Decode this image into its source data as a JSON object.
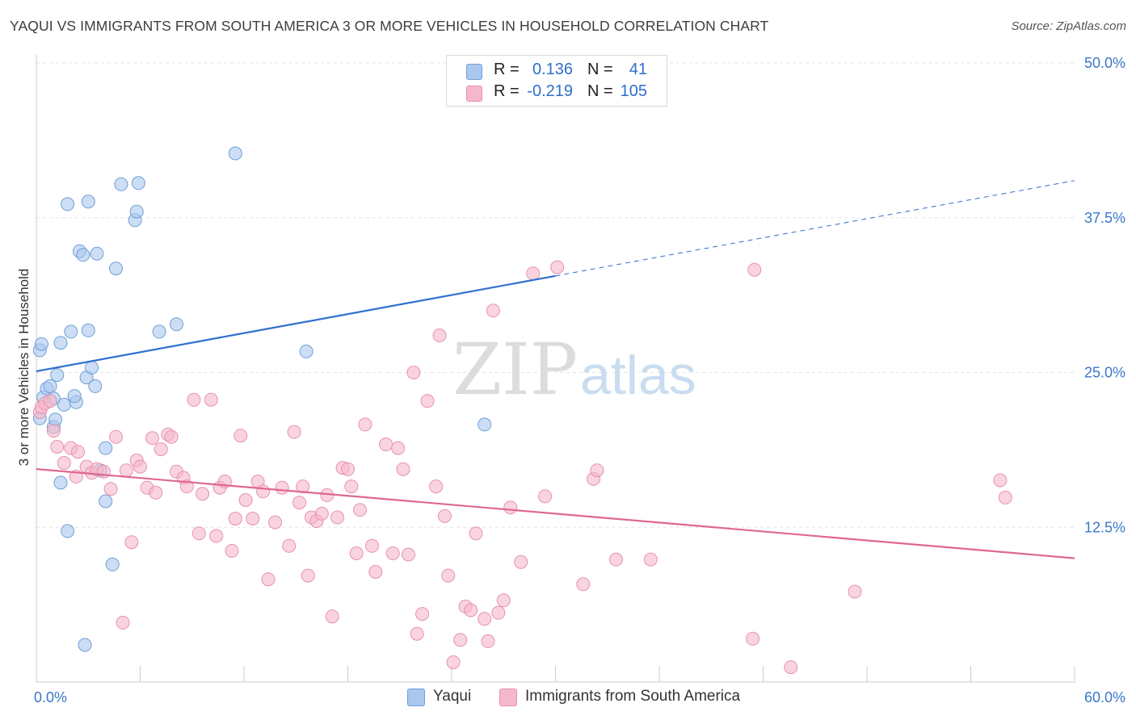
{
  "title": "YAQUI VS IMMIGRANTS FROM SOUTH AMERICA 3 OR MORE VEHICLES IN HOUSEHOLD CORRELATION CHART",
  "source": "Source: ZipAtlas.com",
  "watermark": {
    "zip": "ZIP",
    "atlas": "atlas"
  },
  "legend_top": {
    "rows": [
      {
        "r_label": "R =",
        "r_value": "0.136",
        "n_label": "N =",
        "n_value": "41",
        "color": "#aac8ef",
        "border": "#6f9fd8"
      },
      {
        "r_label": "R =",
        "r_value": "-0.219",
        "n_label": "N =",
        "n_value": "105",
        "color": "#f5b8cb",
        "border": "#e891ad"
      }
    ]
  },
  "legend_bottom": [
    {
      "label": "Yaqui",
      "color": "#aac8ef",
      "border": "#6f9fd8"
    },
    {
      "label": "Immigrants from South America",
      "color": "#f5b8cb",
      "border": "#e891ad"
    }
  ],
  "chart_data": {
    "type": "scatter",
    "xlabel": "",
    "ylabel": "3 or more Vehicles in Household",
    "xlim": [
      0,
      60
    ],
    "ylim": [
      0,
      50
    ],
    "x_tick_labels": [
      {
        "value": 0,
        "label": "0.0%"
      },
      {
        "value": 60,
        "label": "60.0%"
      }
    ],
    "y_tick_labels": [
      {
        "value": 12.5,
        "label": "12.5%"
      },
      {
        "value": 25,
        "label": "25.0%"
      },
      {
        "value": 37.5,
        "label": "37.5%"
      },
      {
        "value": 50,
        "label": "50.0%"
      }
    ],
    "grid": "horizontal dashed",
    "legend_placement": "top-center and bottom",
    "colors": {
      "yaqui": "#2f6fd0",
      "immigrants": "#e0678f"
    },
    "series": [
      {
        "name": "Yaqui",
        "color": "#aac8ef",
        "points": [
          [
            0.2,
            21.3
          ],
          [
            0.2,
            26.8
          ],
          [
            0.3,
            27.3
          ],
          [
            0.4,
            23.0
          ],
          [
            0.6,
            23.7
          ],
          [
            0.8,
            23.9
          ],
          [
            1.0,
            22.9
          ],
          [
            1.0,
            20.6
          ],
          [
            1.1,
            21.2
          ],
          [
            1.2,
            24.8
          ],
          [
            1.4,
            27.4
          ],
          [
            1.4,
            16.1
          ],
          [
            1.6,
            22.4
          ],
          [
            1.8,
            12.2
          ],
          [
            1.8,
            38.6
          ],
          [
            2.0,
            28.3
          ],
          [
            2.3,
            22.6
          ],
          [
            2.2,
            23.1
          ],
          [
            2.5,
            34.8
          ],
          [
            2.7,
            34.5
          ],
          [
            2.8,
            3.0
          ],
          [
            2.9,
            24.6
          ],
          [
            3.0,
            28.4
          ],
          [
            3.0,
            38.8
          ],
          [
            3.2,
            25.4
          ],
          [
            3.4,
            23.9
          ],
          [
            3.5,
            34.6
          ],
          [
            3.7,
            17.1
          ],
          [
            4.0,
            18.9
          ],
          [
            4.0,
            14.6
          ],
          [
            4.4,
            9.5
          ],
          [
            4.6,
            33.4
          ],
          [
            4.9,
            40.2
          ],
          [
            5.7,
            37.3
          ],
          [
            5.8,
            38.0
          ],
          [
            5.9,
            40.3
          ],
          [
            7.1,
            28.3
          ],
          [
            8.1,
            28.9
          ],
          [
            11.5,
            42.7
          ],
          [
            15.6,
            26.7
          ],
          [
            25.9,
            20.8
          ]
        ]
      },
      {
        "name": "Immigrants from South America",
        "color": "#f5b8cb",
        "points": [
          [
            0.2,
            21.8
          ],
          [
            0.3,
            22.2
          ],
          [
            0.5,
            22.5
          ],
          [
            0.8,
            22.7
          ],
          [
            1.0,
            20.3
          ],
          [
            1.2,
            19.0
          ],
          [
            1.6,
            17.7
          ],
          [
            2.0,
            18.9
          ],
          [
            2.3,
            16.6
          ],
          [
            2.4,
            18.6
          ],
          [
            2.9,
            17.4
          ],
          [
            3.2,
            16.9
          ],
          [
            3.5,
            17.2
          ],
          [
            3.9,
            17.0
          ],
          [
            4.3,
            15.6
          ],
          [
            4.6,
            19.8
          ],
          [
            5.0,
            4.8
          ],
          [
            5.2,
            17.1
          ],
          [
            5.5,
            11.3
          ],
          [
            5.8,
            17.9
          ],
          [
            6.0,
            17.4
          ],
          [
            6.4,
            15.7
          ],
          [
            6.7,
            19.7
          ],
          [
            6.9,
            15.3
          ],
          [
            7.2,
            18.8
          ],
          [
            7.6,
            20.0
          ],
          [
            7.8,
            19.8
          ],
          [
            8.1,
            17.0
          ],
          [
            8.5,
            16.5
          ],
          [
            8.7,
            15.8
          ],
          [
            9.1,
            22.8
          ],
          [
            9.4,
            12.0
          ],
          [
            9.6,
            15.2
          ],
          [
            10.1,
            22.8
          ],
          [
            10.4,
            11.8
          ],
          [
            10.6,
            15.7
          ],
          [
            10.9,
            16.2
          ],
          [
            11.3,
            10.6
          ],
          [
            11.5,
            13.2
          ],
          [
            11.8,
            19.9
          ],
          [
            12.1,
            14.7
          ],
          [
            12.5,
            13.2
          ],
          [
            12.8,
            16.2
          ],
          [
            13.1,
            15.4
          ],
          [
            13.4,
            8.3
          ],
          [
            13.8,
            12.9
          ],
          [
            14.2,
            15.7
          ],
          [
            14.6,
            11.0
          ],
          [
            14.9,
            20.2
          ],
          [
            15.2,
            14.5
          ],
          [
            15.4,
            15.8
          ],
          [
            15.7,
            8.6
          ],
          [
            15.9,
            13.3
          ],
          [
            16.2,
            13.0
          ],
          [
            16.5,
            13.6
          ],
          [
            16.8,
            15.1
          ],
          [
            17.1,
            5.3
          ],
          [
            17.4,
            13.3
          ],
          [
            17.7,
            17.3
          ],
          [
            18.0,
            17.2
          ],
          [
            18.2,
            15.8
          ],
          [
            18.5,
            10.4
          ],
          [
            18.7,
            13.9
          ],
          [
            19.0,
            20.8
          ],
          [
            19.4,
            11.0
          ],
          [
            19.6,
            8.9
          ],
          [
            20.2,
            19.2
          ],
          [
            20.6,
            10.4
          ],
          [
            20.9,
            18.9
          ],
          [
            21.2,
            17.2
          ],
          [
            21.5,
            10.3
          ],
          [
            21.8,
            25.0
          ],
          [
            22.0,
            3.9
          ],
          [
            22.3,
            5.5
          ],
          [
            22.6,
            22.7
          ],
          [
            23.1,
            15.8
          ],
          [
            23.3,
            28.0
          ],
          [
            23.6,
            13.4
          ],
          [
            23.8,
            8.6
          ],
          [
            24.1,
            1.6
          ],
          [
            24.5,
            3.4
          ],
          [
            24.8,
            6.1
          ],
          [
            25.1,
            5.8
          ],
          [
            25.4,
            12.0
          ],
          [
            25.9,
            5.1
          ],
          [
            26.1,
            3.3
          ],
          [
            26.4,
            30.0
          ],
          [
            26.7,
            5.6
          ],
          [
            27.0,
            6.6
          ],
          [
            27.4,
            14.1
          ],
          [
            28.0,
            9.7
          ],
          [
            28.7,
            33.0
          ],
          [
            29.4,
            15.0
          ],
          [
            30.1,
            33.5
          ],
          [
            31.6,
            7.9
          ],
          [
            32.2,
            16.4
          ],
          [
            32.4,
            17.1
          ],
          [
            33.5,
            9.9
          ],
          [
            35.5,
            9.9
          ],
          [
            41.5,
            33.3
          ],
          [
            41.4,
            3.5
          ],
          [
            43.6,
            1.2
          ],
          [
            47.3,
            7.3
          ],
          [
            55.7,
            16.3
          ],
          [
            56.0,
            14.9
          ]
        ]
      }
    ],
    "trend_lines": [
      {
        "name": "Yaqui",
        "x_start": 0,
        "y_start": 25.1,
        "x_solid_end": 30.0,
        "y_solid_end": 32.8,
        "x_end": 60,
        "y_end": 40.5,
        "dashed_after": 30.0
      },
      {
        "name": "Immigrants from South America",
        "x_start": 0,
        "y_start": 17.2,
        "x_end": 60,
        "y_end": 10.0
      }
    ]
  }
}
